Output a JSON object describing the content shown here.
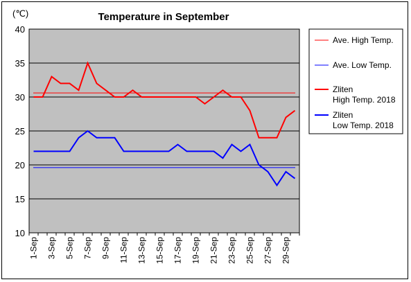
{
  "chart_data": {
    "type": "line",
    "title": "Temperature in September",
    "unit_label": "(℃)",
    "ylim": [
      10,
      40
    ],
    "y_ticks": [
      "10",
      "15",
      "20",
      "25",
      "30",
      "35",
      "40"
    ],
    "x": [
      "1-Sep",
      "2-Sep",
      "3-Sep",
      "4-Sep",
      "5-Sep",
      "6-Sep",
      "7-Sep",
      "8-Sep",
      "9-Sep",
      "10-Sep",
      "11-Sep",
      "12-Sep",
      "13-Sep",
      "14-Sep",
      "15-Sep",
      "16-Sep",
      "17-Sep",
      "18-Sep",
      "19-Sep",
      "20-Sep",
      "21-Sep",
      "22-Sep",
      "23-Sep",
      "24-Sep",
      "25-Sep",
      "26-Sep",
      "27-Sep",
      "28-Sep",
      "29-Sep",
      "30-Sep"
    ],
    "x_tick_labels": [
      "1-Sep",
      "3-Sep",
      "5-Sep",
      "7-Sep",
      "9-Sep",
      "11-Sep",
      "13-Sep",
      "15-Sep",
      "17-Sep",
      "19-Sep",
      "21-Sep",
      "23-Sep",
      "25-Sep",
      "27-Sep",
      "29-Sep"
    ],
    "grid": "horizontal",
    "plot_background": "#c0c0c0",
    "legend_position": "right",
    "series": [
      {
        "name": "Ave. High Temp.",
        "legend_lines": [
          "Ave. High Temp."
        ],
        "color": "#ff0000",
        "width": 1,
        "values": [
          30.6,
          30.6,
          30.6,
          30.6,
          30.6,
          30.6,
          30.6,
          30.6,
          30.6,
          30.6,
          30.6,
          30.6,
          30.6,
          30.6,
          30.6,
          30.6,
          30.6,
          30.6,
          30.6,
          30.6,
          30.6,
          30.6,
          30.6,
          30.6,
          30.6,
          30.6,
          30.6,
          30.6,
          30.6,
          30.6
        ]
      },
      {
        "name": "Ave. Low Temp.",
        "legend_lines": [
          "Ave. Low Temp."
        ],
        "color": "#0000ff",
        "width": 1,
        "values": [
          19.6,
          19.6,
          19.6,
          19.6,
          19.6,
          19.6,
          19.6,
          19.6,
          19.6,
          19.6,
          19.6,
          19.6,
          19.6,
          19.6,
          19.6,
          19.6,
          19.6,
          19.6,
          19.6,
          19.6,
          19.6,
          19.6,
          19.6,
          19.6,
          19.6,
          19.6,
          19.6,
          19.6,
          19.6,
          19.6
        ]
      },
      {
        "name": "Zliten High Temp. 2018",
        "legend_lines": [
          "Zliten",
          "High Temp. 2018"
        ],
        "color": "#ff0000",
        "width": 2,
        "values": [
          30,
          30,
          33,
          32,
          32,
          31,
          35,
          32,
          31,
          30,
          30,
          31,
          30,
          30,
          30,
          30,
          30,
          30,
          30,
          29,
          30,
          31,
          30,
          30,
          28,
          24,
          24,
          24,
          27,
          28
        ]
      },
      {
        "name": "Zliten Low Temp. 2018",
        "legend_lines": [
          "Zliten",
          "Low Temp. 2018"
        ],
        "color": "#0000ff",
        "width": 2,
        "values": [
          22,
          22,
          22,
          22,
          22,
          24,
          25,
          24,
          24,
          24,
          22,
          22,
          22,
          22,
          22,
          22,
          23,
          22,
          22,
          22,
          22,
          21,
          23,
          22,
          23,
          20,
          19,
          17,
          19,
          18
        ]
      }
    ]
  }
}
